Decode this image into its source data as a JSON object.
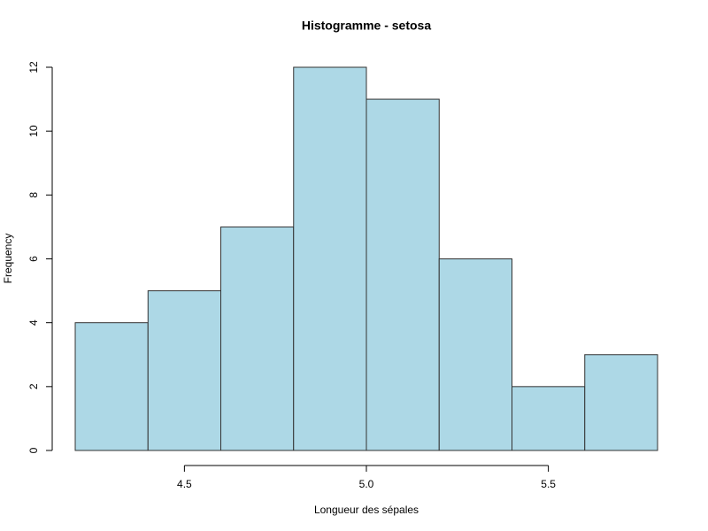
{
  "chart_data": {
    "type": "histogram",
    "title": "Histogramme - setosa",
    "xlabel": "Longueur des sépales",
    "ylabel": "Frequency",
    "bins": [
      4.2,
      4.4,
      4.6,
      4.8,
      5.0,
      5.2,
      5.4,
      5.6,
      5.8
    ],
    "values": [
      4,
      5,
      7,
      12,
      11,
      6,
      2,
      3
    ],
    "color": "#add8e6",
    "xlim": [
      4.2,
      5.8
    ],
    "xticks": [
      4.5,
      {
        "value": 5.0,
        "label": "5.0"
      },
      5.5
    ],
    "ylim": [
      0,
      12
    ],
    "yticks": [
      0,
      2,
      4,
      6,
      8,
      10,
      12
    ]
  }
}
